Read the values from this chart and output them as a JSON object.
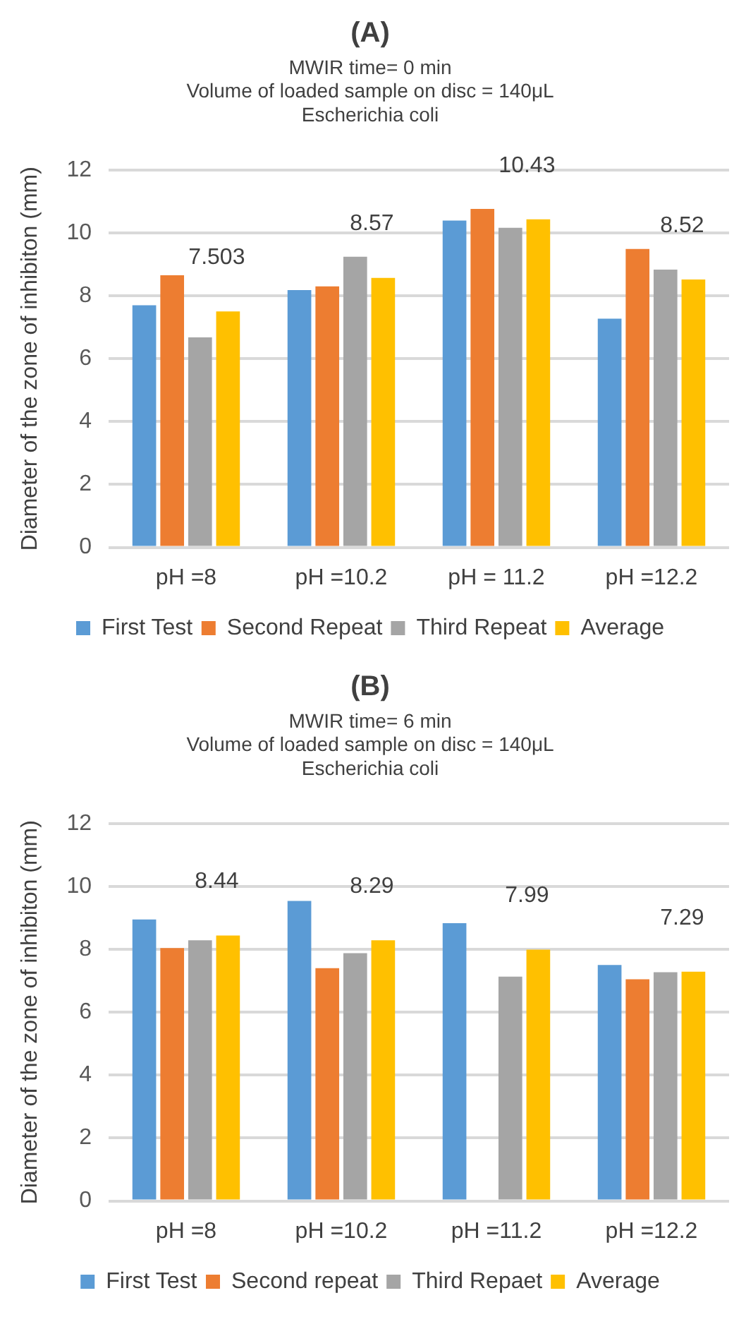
{
  "chart_data": [
    {
      "type": "bar",
      "title": "(A)",
      "subtitle": "MWIR time= 0 min\nVolume of loaded sample on disc = 140μL\nEscherichia coli",
      "ylabel": "Diameter of the zone of inhibiton (mm)",
      "categories": [
        "pH =8",
        "pH =10.2",
        "pH = 11.2",
        "pH =12.2"
      ],
      "series": [
        {
          "name": "First Test",
          "color": "#5b9bd5",
          "values": [
            7.7,
            8.18,
            10.39,
            7.27
          ]
        },
        {
          "name": "Second Repeat",
          "color": "#ed7d31",
          "values": [
            8.65,
            8.3,
            10.76,
            9.49
          ]
        },
        {
          "name": "Third Repeat",
          "color": "#a5a5a5",
          "values": [
            6.68,
            9.24,
            10.16,
            8.83
          ]
        },
        {
          "name": "Average",
          "color": "#ffc000",
          "values": [
            7.503,
            8.57,
            10.43,
            8.52
          ],
          "value_labels": [
            "7.503",
            "8.57",
            "10.43",
            "8.52"
          ]
        }
      ],
      "ylim": [
        0,
        12
      ],
      "yticks": [
        0,
        2,
        4,
        6,
        8,
        10,
        12
      ],
      "grid": "y",
      "legend": "bottom"
    },
    {
      "type": "bar",
      "title": "(B)",
      "subtitle": "MWIR time= 6 min\nVolume of loaded sample on disc = 140μL\nEscherichia coli",
      "ylabel": "Diameter of the zone of inhibiton (mm)",
      "categories": [
        "pH =8",
        "pH =10.2",
        "pH =11.2",
        "pH =12.2"
      ],
      "series": [
        {
          "name": "First Test",
          "color": "#5b9bd5",
          "values": [
            8.95,
            9.54,
            8.83,
            7.5
          ]
        },
        {
          "name": "Second repeat",
          "color": "#ed7d31",
          "values": [
            8.04,
            7.4,
            null,
            7.05
          ]
        },
        {
          "name": "Third Repaet",
          "color": "#a5a5a5",
          "values": [
            8.29,
            7.88,
            7.13,
            7.27
          ]
        },
        {
          "name": "Average",
          "color": "#ffc000",
          "values": [
            8.44,
            8.29,
            7.99,
            7.29
          ],
          "value_labels": [
            "8.44",
            "8.29",
            "7.99",
            "7.29"
          ]
        }
      ],
      "ylim": [
        0,
        12
      ],
      "yticks": [
        0,
        2,
        4,
        6,
        8,
        10,
        12
      ],
      "grid": "y",
      "legend": "bottom"
    }
  ]
}
